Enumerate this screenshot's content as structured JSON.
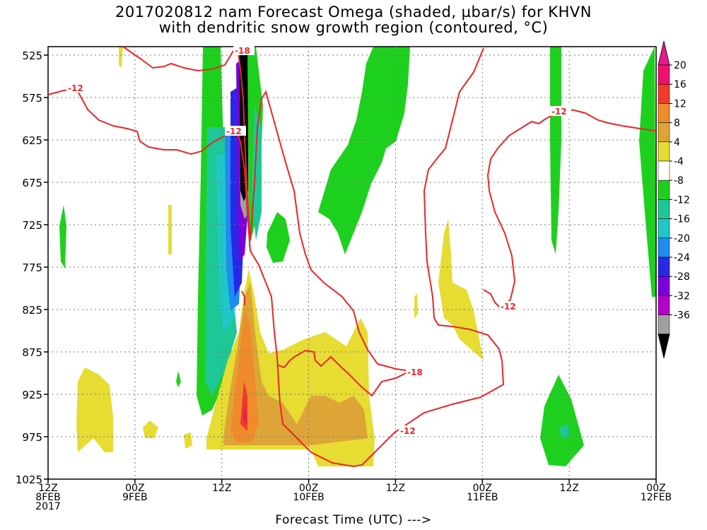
{
  "title_line1": "2017020812 nam Forecast Omega (shaded, µbar/s) for KHVN",
  "title_line2": "with dendritic snow growth region (contoured, °C)",
  "chart_data": {
    "type": "heatmap",
    "title": "2017020812 nam Forecast Omega (shaded, µbar/s) for KHVN with dendritic snow growth region (contoured, °C)",
    "xlabel": "Forecast Time (UTC) --->",
    "ylabel": "",
    "x_range_hours": [
      0,
      84
    ],
    "y_range_hpa": [
      1025,
      515
    ],
    "y_inverted": true,
    "grid": true,
    "y_ticks": [
      "525",
      "575",
      "625",
      "675",
      "725",
      "775",
      "825",
      "875",
      "925",
      "975",
      "1025"
    ],
    "x_ticks": [
      {
        "line1": "12Z",
        "line2": "8FEB",
        "line3": "2017",
        "hour": 0
      },
      {
        "line1": "00Z",
        "line2": "9FEB",
        "hour": 12
      },
      {
        "line1": "12Z",
        "hour": 24
      },
      {
        "line1": "00Z",
        "line2": "10FEB",
        "hour": 36
      },
      {
        "line1": "12Z",
        "hour": 48
      },
      {
        "line1": "00Z",
        "line2": "11FEB",
        "hour": 60
      },
      {
        "line1": "12Z",
        "hour": 72
      },
      {
        "line1": "00Z",
        "line2": "12FEB",
        "hour": 84
      }
    ],
    "colorbar_levels": [
      {
        "label": "20",
        "color": "#f0106e"
      },
      {
        "label": "16",
        "color": "#f03a2a"
      },
      {
        "label": "12",
        "color": "#ef8b2a"
      },
      {
        "label": "8",
        "color": "#dca536"
      },
      {
        "label": "4",
        "color": "#e6dc32"
      },
      {
        "label": "-4",
        "color": "#ffffff"
      },
      {
        "label": "-8",
        "color": "#1ed01e"
      },
      {
        "label": "-12",
        "color": "#1ec896"
      },
      {
        "label": "-16",
        "color": "#1ec8c8"
      },
      {
        "label": "-20",
        "color": "#1e8cf0"
      },
      {
        "label": "-24",
        "color": "#2828e6"
      },
      {
        "label": "-28",
        "color": "#7800dc"
      },
      {
        "label": "-32",
        "color": "#b400c8"
      },
      {
        "label": "-36",
        "color": "#a0a0a0"
      }
    ],
    "colorbar_top_color": "#e6198c",
    "colorbar_bottom_color": "#000000",
    "contour_color": "#e8262a",
    "contour_labels": [
      "-12",
      "-18",
      "-12",
      "-12",
      "-12",
      "-18",
      "-12"
    ]
  }
}
